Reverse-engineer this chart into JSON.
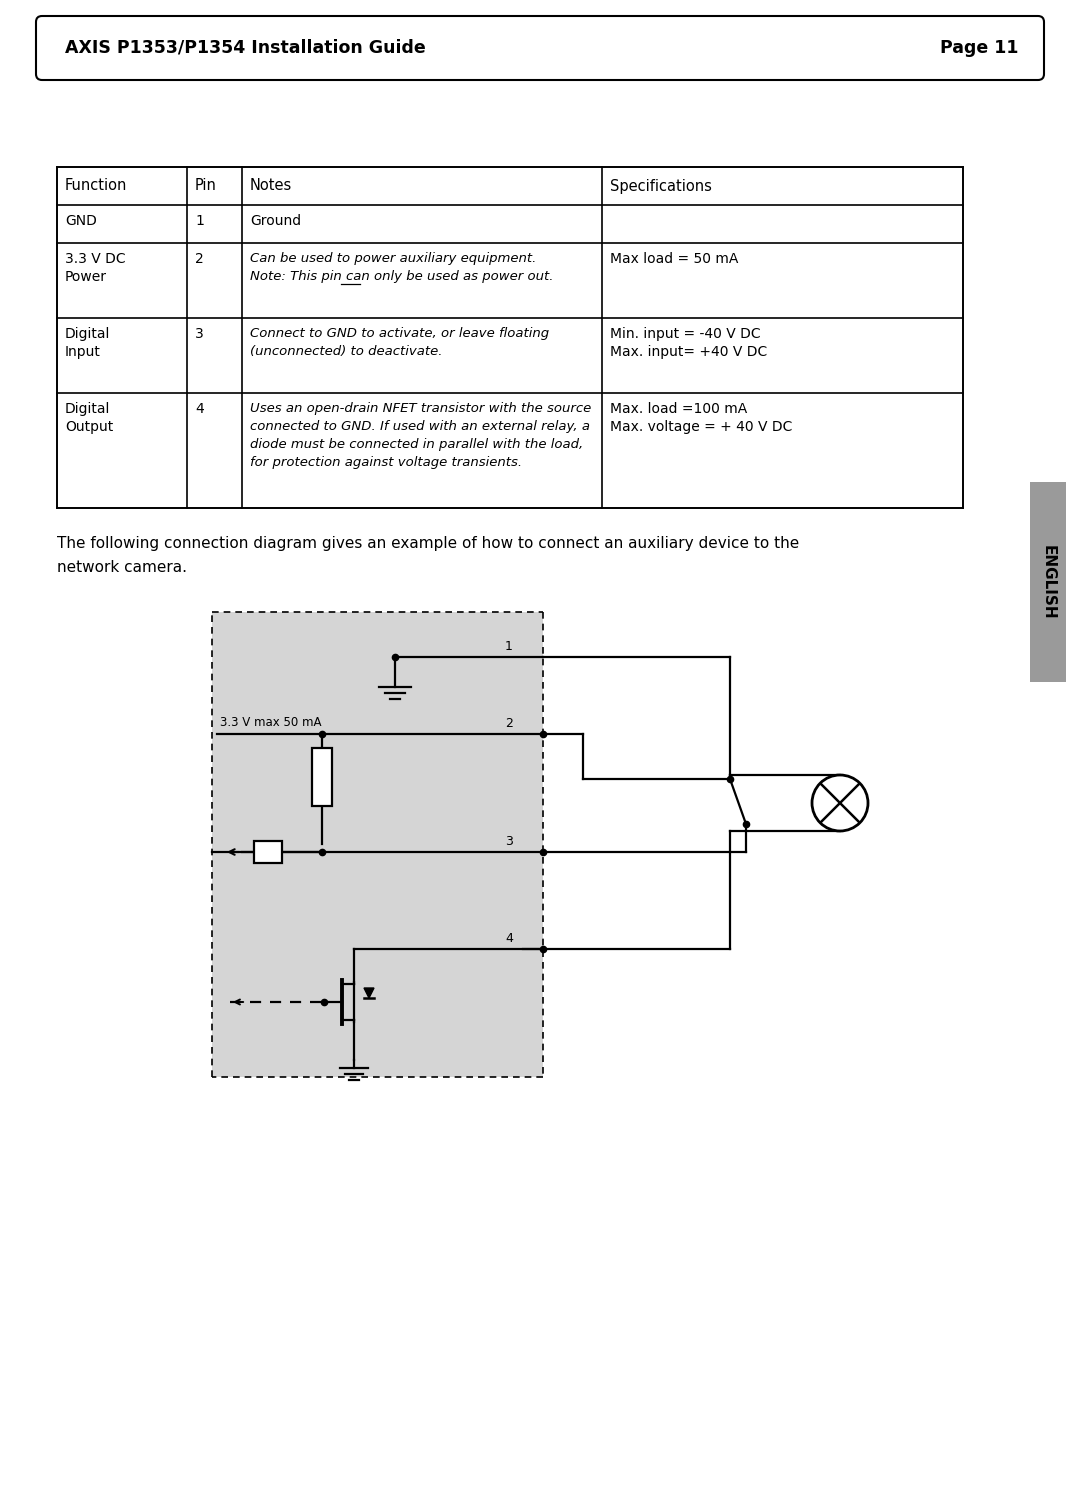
{
  "header_left": "AXIS P1353/P1354 Installation Guide",
  "header_right": "Page 11",
  "table_headers": [
    "Function",
    "Pin",
    "Notes",
    "Specifications"
  ],
  "table_data": [
    [
      "GND",
      "1",
      "Ground",
      ""
    ],
    [
      "3.3 V DC\nPower",
      "2",
      "Can be used to power auxiliary equipment.\nNote: This pin can only be used as power out.",
      "Max load = 50 mA"
    ],
    [
      "Digital\nInput",
      "3",
      "Connect to GND to activate, or leave floating\n(unconnected) to deactivate.",
      "Min. input = -40 V DC\nMax. input= +40 V DC"
    ],
    [
      "Digital\nOutput",
      "4",
      "Uses an open-drain NFET transistor with the source\nconnected to GND. If used with an external relay, a\ndiode must be connected in parallel with the load,\nfor protection against voltage transients.",
      "Max. load =100 mA\nMax. voltage = + 40 V DC"
    ]
  ],
  "caption_line1": "The following connection diagram gives an example of how to connect an auxiliary device to the",
  "caption_line2": "network camera.",
  "bg_color": "#ffffff",
  "diagram_bg": "#d8d8d8",
  "diagram_label": "3.3 V max 50 mA",
  "sidebar_label": "ENGLISH",
  "sidebar_color": "#999999"
}
